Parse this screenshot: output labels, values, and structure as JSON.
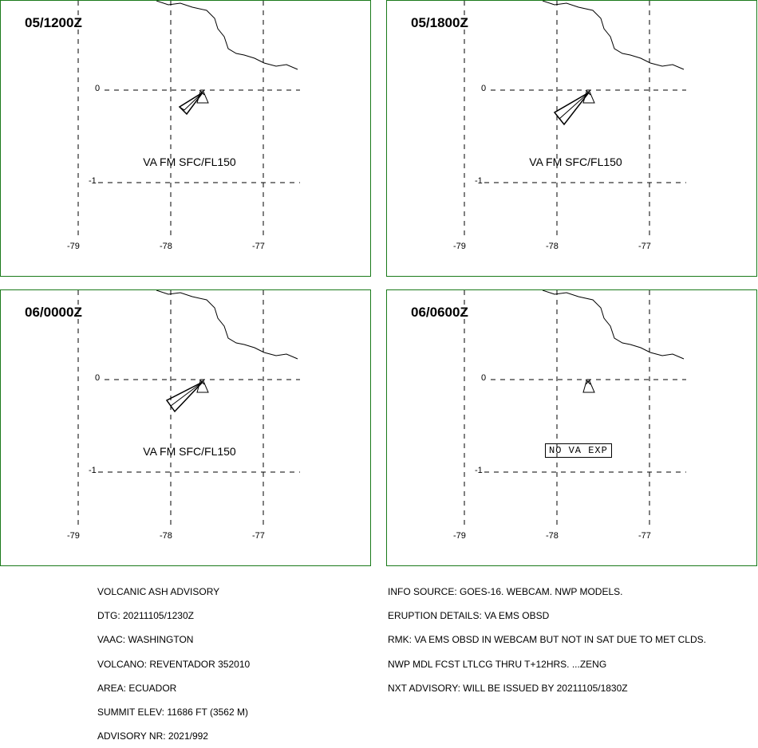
{
  "panels": [
    {
      "time": "05/1200Z",
      "label": "VA FM SFC/FL150",
      "type": "va"
    },
    {
      "time": "05/1800Z",
      "label": "VA FM SFC/FL150",
      "type": "va"
    },
    {
      "time": "06/0000Z",
      "label": "VA FM SFC/FL150",
      "type": "va"
    },
    {
      "time": "06/0600Z",
      "label": "NO VA EXP",
      "type": "none"
    }
  ],
  "axes": {
    "lon_labels": [
      "-79",
      "-78",
      "-77"
    ],
    "lat_labels": [
      "0",
      "-1"
    ]
  },
  "advisory": {
    "left": [
      "VOLCANIC ASH ADVISORY",
      "DTG: 20211105/1230Z",
      "VAAC: WASHINGTON",
      "VOLCANO: REVENTADOR 352010",
      "AREA: ECUADOR",
      "SUMMIT ELEV: 11686 FT (3562 M)",
      "ADVISORY NR: 2021/992"
    ],
    "right": [
      "INFO SOURCE: GOES-16. WEBCAM. NWP MODELS.",
      "ERUPTION DETAILS: VA EMS OBSD",
      "RMK: VA EMS OBSD IN WEBCAM BUT NOT IN SAT DUE TO MET CLDS.",
      "NWP MDL FCST LTLCG THRU T+12HRS. ...ZENG",
      "NXT ADVISORY: WILL BE ISSUED BY 20211105/1830Z"
    ]
  },
  "colors": {
    "border": "#1a7a1a",
    "lines": "#000000"
  }
}
